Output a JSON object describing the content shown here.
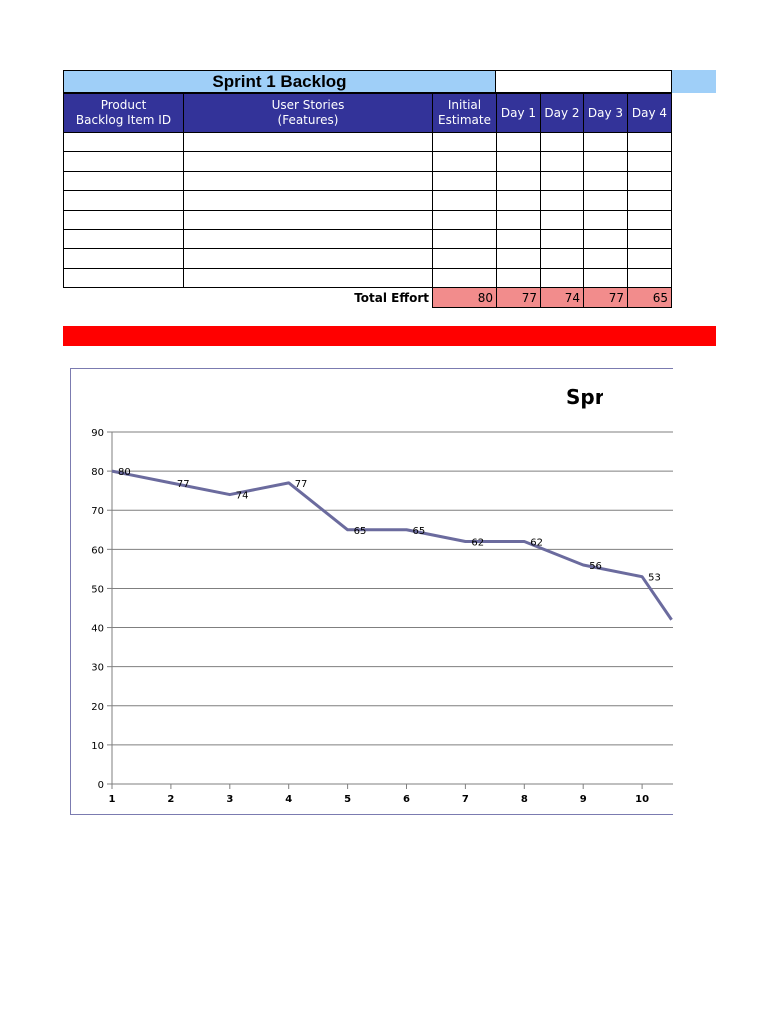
{
  "sheet": {
    "title": "Sprint 1 Backlog",
    "headers": {
      "product": "Product\nBacklog Item ID",
      "stories": "User Stories\n(Features)",
      "estimate": "Initial\nEstimate",
      "day1": "Day 1",
      "day2": "Day 2",
      "day3": "Day 3",
      "day4": "Day 4"
    },
    "total_label": "Total Effort",
    "totals": [
      "80",
      "77",
      "74",
      "77",
      "65"
    ],
    "empty_rows": 8
  },
  "colors": {
    "title_fill": "#9fcff8",
    "header_fill": "#333399",
    "total_fill": "#f28c8c",
    "banner": "#ff0000",
    "line": "#6b6b9e"
  },
  "chart_data": {
    "type": "line",
    "title": "Spri",
    "x": [
      1,
      2,
      3,
      4,
      5,
      6,
      7,
      8,
      9,
      10,
      10.5
    ],
    "series": [
      {
        "values": [
          80,
          77,
          74,
          77,
          65,
          65,
          62,
          62,
          56,
          53,
          42
        ]
      }
    ],
    "data_labels": [
      "80",
      "77",
      "74",
      "77",
      "65",
      "65",
      "62",
      "62",
      "56",
      "53"
    ],
    "xticks": [
      "1",
      "2",
      "3",
      "4",
      "5",
      "6",
      "7",
      "8",
      "9",
      "10"
    ],
    "yticks": [
      "0",
      "10",
      "20",
      "30",
      "40",
      "50",
      "60",
      "70",
      "80",
      "90"
    ],
    "xlim": [
      1,
      11
    ],
    "ylim": [
      0,
      90
    ],
    "grid": true,
    "xlabel": "",
    "ylabel": ""
  }
}
